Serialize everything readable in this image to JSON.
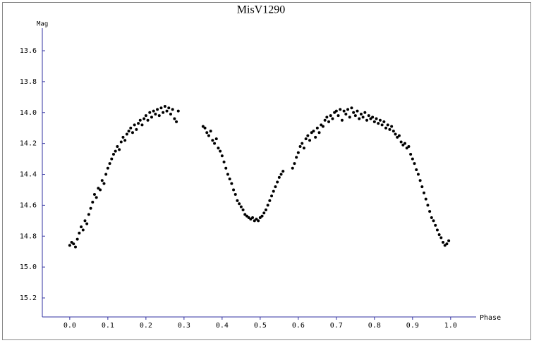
{
  "chart_data": {
    "type": "scatter",
    "title": "MisV1290",
    "y_label": "Mag",
    "x_label": "Phase",
    "color": "#000000",
    "xlim": [
      -0.072,
      1.067
    ],
    "ylim": [
      15.323,
      13.454
    ],
    "xticks": [
      {
        "value": 0,
        "label": "0.0"
      },
      0.1,
      0.2,
      0.3,
      0.4,
      0.5,
      0.6,
      0.7,
      0.8,
      0.9,
      {
        "value": 1,
        "label": "1.0"
      }
    ],
    "yticks": [
      13.6,
      13.8,
      {
        "value": 14,
        "label": "14.0"
      },
      14.2,
      14.4,
      14.6,
      14.8,
      {
        "value": 15,
        "label": "15.0"
      },
      15.2
    ],
    "x": [
      0.0,
      0.005,
      0.01,
      0.015,
      0.02,
      0.025,
      0.03,
      0.035,
      0.04,
      0.045,
      0.05,
      0.055,
      0.06,
      0.065,
      0.07,
      0.075,
      0.08,
      0.085,
      0.09,
      0.095,
      0.1,
      0.105,
      0.11,
      0.115,
      0.12,
      0.125,
      0.13,
      0.135,
      0.14,
      0.145,
      0.15,
      0.155,
      0.16,
      0.165,
      0.17,
      0.175,
      0.18,
      0.185,
      0.19,
      0.195,
      0.2,
      0.205,
      0.21,
      0.215,
      0.22,
      0.225,
      0.23,
      0.235,
      0.24,
      0.245,
      0.25,
      0.255,
      0.26,
      0.265,
      0.27,
      0.275,
      0.28,
      0.285,
      0.35,
      0.355,
      0.36,
      0.365,
      0.37,
      0.375,
      0.38,
      0.385,
      0.39,
      0.395,
      0.4,
      0.405,
      0.41,
      0.415,
      0.42,
      0.425,
      0.43,
      0.435,
      0.44,
      0.445,
      0.45,
      0.455,
      0.46,
      0.465,
      0.47,
      0.475,
      0.48,
      0.485,
      0.49,
      0.495,
      0.5,
      0.505,
      0.51,
      0.515,
      0.52,
      0.525,
      0.53,
      0.535,
      0.54,
      0.545,
      0.55,
      0.555,
      0.56,
      0.585,
      0.59,
      0.595,
      0.6,
      0.605,
      0.61,
      0.615,
      0.62,
      0.625,
      0.63,
      0.635,
      0.64,
      0.645,
      0.65,
      0.655,
      0.66,
      0.665,
      0.67,
      0.675,
      0.68,
      0.685,
      0.69,
      0.695,
      0.7,
      0.705,
      0.71,
      0.715,
      0.72,
      0.725,
      0.73,
      0.735,
      0.74,
      0.745,
      0.75,
      0.755,
      0.76,
      0.765,
      0.77,
      0.775,
      0.78,
      0.785,
      0.79,
      0.795,
      0.8,
      0.805,
      0.81,
      0.815,
      0.82,
      0.825,
      0.83,
      0.835,
      0.84,
      0.845,
      0.85,
      0.855,
      0.86,
      0.865,
      0.87,
      0.875,
      0.88,
      0.885,
      0.89,
      0.895,
      0.9,
      0.905,
      0.91,
      0.915,
      0.92,
      0.925,
      0.93,
      0.935,
      0.94,
      0.945,
      0.95,
      0.955,
      0.96,
      0.965,
      0.97,
      0.975,
      0.98,
      0.985,
      0.99,
      0.995
    ],
    "values": [
      14.86,
      14.84,
      14.85,
      14.87,
      14.82,
      14.78,
      14.74,
      14.76,
      14.7,
      14.72,
      14.66,
      14.62,
      14.58,
      14.53,
      14.55,
      14.49,
      14.5,
      14.44,
      14.46,
      14.4,
      14.36,
      14.33,
      14.3,
      14.27,
      14.25,
      14.22,
      14.24,
      14.19,
      14.16,
      14.18,
      14.14,
      14.12,
      14.1,
      14.13,
      14.08,
      14.11,
      14.07,
      14.05,
      14.08,
      14.04,
      14.02,
      14.05,
      14.0,
      14.03,
      13.99,
      14.01,
      13.98,
      14.02,
      13.97,
      14.0,
      13.96,
      13.99,
      13.97,
      14.01,
      13.98,
      14.04,
      14.06,
      13.99,
      14.09,
      14.1,
      14.13,
      14.15,
      14.12,
      14.18,
      14.2,
      14.17,
      14.23,
      14.25,
      14.28,
      14.32,
      14.36,
      14.4,
      14.43,
      14.46,
      14.5,
      14.53,
      14.57,
      14.59,
      14.61,
      14.63,
      14.66,
      14.67,
      14.68,
      14.69,
      14.68,
      14.7,
      14.69,
      14.7,
      14.68,
      14.67,
      14.65,
      14.63,
      14.6,
      14.57,
      14.54,
      14.51,
      14.48,
      14.45,
      14.42,
      14.4,
      14.38,
      14.36,
      14.33,
      14.29,
      14.26,
      14.22,
      14.2,
      14.23,
      14.17,
      14.15,
      14.18,
      14.13,
      14.12,
      14.16,
      14.1,
      14.13,
      14.08,
      14.09,
      14.05,
      14.03,
      14.06,
      14.02,
      14.04,
      14.0,
      13.99,
      14.02,
      13.98,
      14.05,
      13.99,
      14.01,
      13.98,
      14.03,
      13.97,
      14.0,
      14.02,
      13.99,
      14.04,
      14.01,
      14.03,
      14.0,
      14.05,
      14.02,
      14.04,
      14.03,
      14.06,
      14.04,
      14.07,
      14.05,
      14.08,
      14.06,
      14.1,
      14.08,
      14.11,
      14.09,
      14.12,
      14.14,
      14.16,
      14.15,
      14.19,
      14.21,
      14.2,
      14.23,
      14.22,
      14.27,
      14.3,
      14.33,
      14.37,
      14.4,
      14.44,
      14.48,
      14.52,
      14.56,
      14.6,
      14.64,
      14.68,
      14.7,
      14.73,
      14.76,
      14.79,
      14.81,
      14.84,
      14.86,
      14.85,
      14.83
    ]
  }
}
